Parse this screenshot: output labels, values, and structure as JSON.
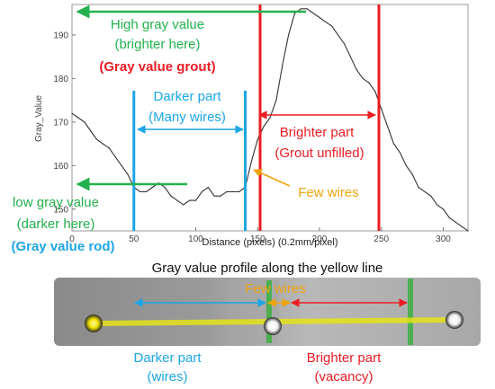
{
  "chart_data": {
    "type": "line",
    "title": "",
    "xlabel": "Distance (pixels) (0.2mm/pixel)",
    "ylabel": "Gray_Value",
    "xlim": [
      0,
      320
    ],
    "ylim": [
      145,
      197
    ],
    "x_ticks": [
      0,
      50,
      100,
      150,
      200,
      250,
      300
    ],
    "y_ticks": [
      150,
      160,
      170,
      180,
      190
    ],
    "grid": false,
    "x": [
      0,
      5,
      10,
      15,
      20,
      25,
      30,
      35,
      40,
      45,
      50,
      55,
      60,
      65,
      70,
      75,
      80,
      85,
      90,
      95,
      100,
      105,
      110,
      115,
      120,
      125,
      130,
      135,
      140,
      145,
      150,
      155,
      160,
      165,
      170,
      175,
      180,
      185,
      190,
      195,
      200,
      205,
      210,
      215,
      220,
      225,
      230,
      235,
      240,
      245,
      250,
      255,
      260,
      265,
      270,
      275,
      280,
      285,
      290,
      295,
      300,
      305,
      310,
      315,
      320
    ],
    "values": [
      172,
      171,
      170,
      168,
      166,
      165,
      164,
      162,
      160,
      158,
      155,
      154,
      154,
      155,
      156,
      155,
      153,
      152,
      151,
      152,
      152,
      154,
      155,
      153,
      153,
      154,
      154,
      154,
      155,
      161,
      166,
      169,
      171,
      175,
      183,
      190,
      195,
      196,
      196,
      195,
      194,
      193,
      192,
      190,
      188,
      185,
      182,
      180,
      179,
      177,
      173,
      169,
      165,
      163,
      160,
      158,
      155,
      154,
      153,
      151,
      150,
      148,
      147,
      146,
      145
    ]
  },
  "markers": {
    "green_color": "#22b14c",
    "red_color": "#ed1c24",
    "blue_color": "#1ca6e6",
    "orange_color": "#f0a30a",
    "blue_lines": [
      50,
      140
    ],
    "red_lines": [
      152,
      248
    ]
  },
  "annotations": {
    "high_line1": "High gray value",
    "high_line2": "(brighter here)",
    "grout": "(Gray value grout)",
    "darker_line1": "Darker part",
    "darker_line2": "(Many wires)",
    "brighter_line1": "Brighter part",
    "brighter_line2": "(Grout unfilled)",
    "low_line1": "low gray value",
    "low_line2": "(darker here)",
    "rod": "(Gray value rod)",
    "few_wires": "Few wires"
  },
  "profile_caption": "Gray value profile along the yellow line",
  "bottom": {
    "few_wires": "Few wires",
    "darker_line1": "Darker part",
    "darker_line2": "(wires)",
    "brighter_line1": "Brighter part",
    "brighter_line2": "(vacancy)"
  }
}
